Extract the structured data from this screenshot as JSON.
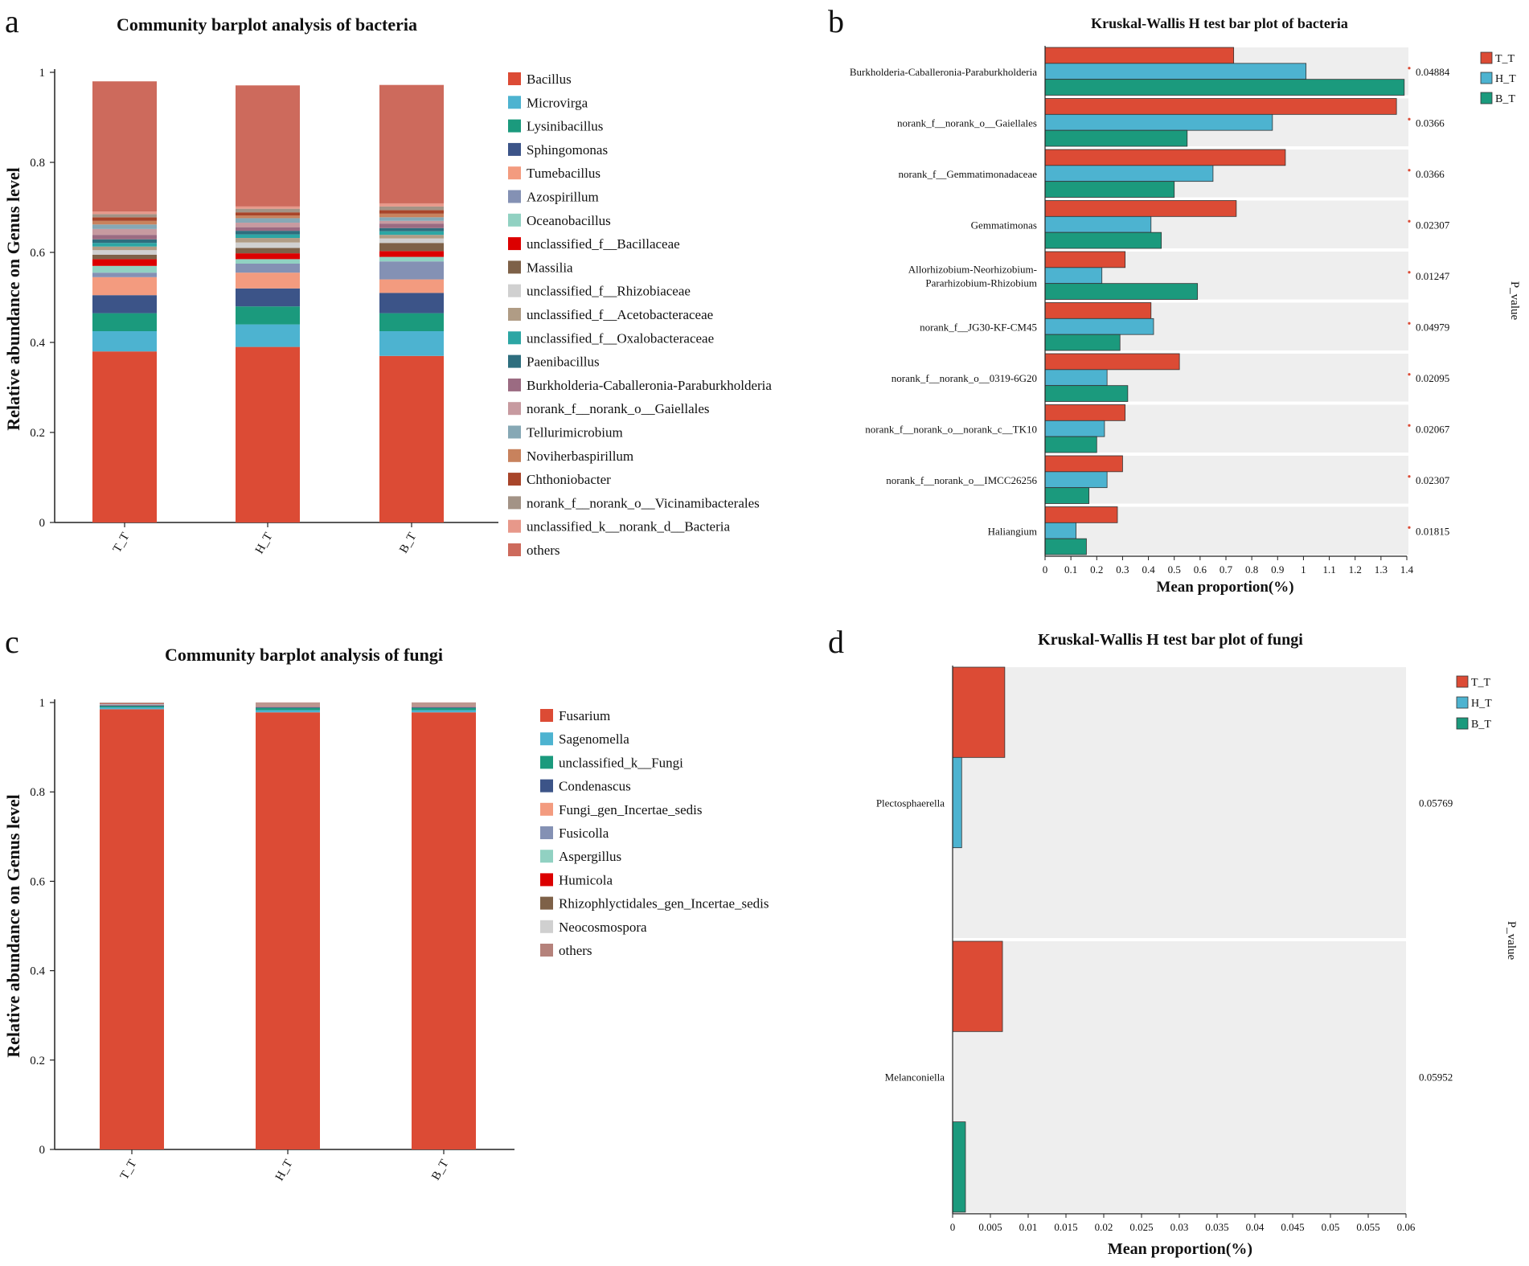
{
  "panel_letters": [
    "a",
    "b",
    "c",
    "d"
  ],
  "colors": {
    "others": "#cd6a5c",
    "ttt": "#dc4b35",
    "htt": "#4db3d0",
    "btt": "#1b9a7d",
    "band": "#eeeeee",
    "pdot": "#dc4b35"
  },
  "chart_data": [
    {
      "id": "a",
      "type": "bar",
      "stacked": true,
      "title": "Community barplot analysis of bacteria",
      "xlabel": "",
      "ylabel": "Relative abundance on Genus level",
      "ylim": [
        0,
        1
      ],
      "yticks": [
        "0",
        "0.2",
        "0.4",
        "0.6",
        "0.8",
        "1"
      ],
      "categories": [
        "T_T",
        "H_T",
        "B_T"
      ],
      "series": [
        {
          "name": "Bacillus",
          "color": "#dc4b35",
          "values": [
            0.38,
            0.39,
            0.37
          ]
        },
        {
          "name": "Microvirga",
          "color": "#4db3d0",
          "values": [
            0.045,
            0.05,
            0.055
          ]
        },
        {
          "name": "Lysinibacillus",
          "color": "#1b9a7d",
          "values": [
            0.04,
            0.04,
            0.04
          ]
        },
        {
          "name": "Sphingomonas",
          "color": "#3c5488",
          "values": [
            0.04,
            0.04,
            0.045
          ]
        },
        {
          "name": "Tumebacillus",
          "color": "#f39b7f",
          "values": [
            0.04,
            0.035,
            0.03
          ]
        },
        {
          "name": "Azospirillum",
          "color": "#8491b4",
          "values": [
            0.01,
            0.02,
            0.04
          ]
        },
        {
          "name": "Oceanobacillus",
          "color": "#91d1c2",
          "values": [
            0.015,
            0.01,
            0.01
          ]
        },
        {
          "name": "unclassified_f__Bacillaceae",
          "color": "#dc0000",
          "values": [
            0.015,
            0.013,
            0.013
          ]
        },
        {
          "name": "Massilia",
          "color": "#7e6148",
          "values": [
            0.01,
            0.012,
            0.018
          ]
        },
        {
          "name": "unclassified_f__Rhizobiaceae",
          "color": "#d0d0d0",
          "values": [
            0.01,
            0.012,
            0.01
          ]
        },
        {
          "name": "unclassified_f__Acetobacteraceae",
          "color": "#b09c85",
          "values": [
            0.008,
            0.01,
            0.008
          ]
        },
        {
          "name": "unclassified_f__Oxalobacteraceae",
          "color": "#2ca6a4",
          "values": [
            0.008,
            0.008,
            0.008
          ]
        },
        {
          "name": "Paenibacillus",
          "color": "#2e6e7e",
          "values": [
            0.008,
            0.008,
            0.007
          ]
        },
        {
          "name": "Burkholderia-Caballeronia-Paraburkholderia",
          "color": "#9b6b82",
          "values": [
            0.01,
            0.008,
            0.01
          ]
        },
        {
          "name": "norank_f__norank_o__Gaiellales",
          "color": "#c79aa0",
          "values": [
            0.013,
            0.01,
            0.006
          ]
        },
        {
          "name": "Tellurimicrobium",
          "color": "#86a8b5",
          "values": [
            0.01,
            0.01,
            0.008
          ]
        },
        {
          "name": "Noviherbaspirillum",
          "color": "#c8825d",
          "values": [
            0.008,
            0.006,
            0.008
          ]
        },
        {
          "name": "Chthoniobacter",
          "color": "#a8452a",
          "values": [
            0.008,
            0.007,
            0.008
          ]
        },
        {
          "name": "norank_f__norank_o__Vicinamibacterales",
          "color": "#a39386",
          "values": [
            0.007,
            0.008,
            0.008
          ]
        },
        {
          "name": "unclassified_k__norank_d__Bacteria",
          "color": "#e7988a",
          "values": [
            0.006,
            0.005,
            0.007
          ]
        },
        {
          "name": "others",
          "color": "#cd6a5c",
          "values": [
            0.289,
            0.269,
            0.263
          ]
        }
      ]
    },
    {
      "id": "b",
      "type": "bar",
      "orientation": "horizontal",
      "title": "Kruskal-Wallis H test bar plot of bacteria",
      "xlabel": "Mean proportion(%)",
      "ylabel": "P_value",
      "xlim": [
        0,
        1.4
      ],
      "xticks": [
        "0",
        "0.1",
        "0.2",
        "0.3",
        "0.4",
        "0.5",
        "0.6",
        "0.7",
        "0.8",
        "0.9",
        "1",
        "1.1",
        "1.2",
        "1.3",
        "1.4"
      ],
      "legend": [
        "T_T",
        "H_T",
        "B_T"
      ],
      "categories": [
        [
          "Burkholderia-Caballeronia-Paraburkholderia"
        ],
        [
          "norank_f__norank_o__Gaiellales"
        ],
        [
          "norank_f__Gemmatimonadaceae"
        ],
        [
          "Gemmatimonas"
        ],
        [
          "Allorhizobium-Neorhizobium-",
          "Pararhizobium-Rhizobium"
        ],
        [
          "norank_f__JG30-KF-CM45"
        ],
        [
          "norank_f__norank_o__0319-6G20"
        ],
        [
          "norank_f__norank_o__norank_c__TK10"
        ],
        [
          "norank_f__norank_o__IMCC26256"
        ],
        [
          "Haliangium"
        ]
      ],
      "p_values": [
        "0.04884",
        "0.0366",
        "0.0366",
        "0.02307",
        "0.01247",
        "0.04979",
        "0.02095",
        "0.02067",
        "0.02307",
        "0.01815"
      ],
      "series": [
        {
          "name": "T_T",
          "values": [
            0.73,
            1.36,
            0.93,
            0.74,
            0.31,
            0.41,
            0.52,
            0.31,
            0.3,
            0.28
          ]
        },
        {
          "name": "H_T",
          "values": [
            1.01,
            0.88,
            0.65,
            0.41,
            0.22,
            0.42,
            0.24,
            0.23,
            0.24,
            0.12
          ]
        },
        {
          "name": "B_T",
          "values": [
            1.39,
            0.55,
            0.5,
            0.45,
            0.59,
            0.29,
            0.32,
            0.2,
            0.17,
            0.16
          ]
        }
      ]
    },
    {
      "id": "c",
      "type": "bar",
      "stacked": true,
      "title": "Community barplot analysis of fungi",
      "xlabel": "",
      "ylabel": "Relative abundance on Genus level",
      "ylim": [
        0,
        1
      ],
      "yticks": [
        "0",
        "0.2",
        "0.4",
        "0.6",
        "0.8",
        "1"
      ],
      "categories": [
        "T_T",
        "H_T",
        "B_T"
      ],
      "series": [
        {
          "name": "Fusarium",
          "color": "#dc4b35",
          "values": [
            0.985,
            0.978,
            0.978
          ]
        },
        {
          "name": "Sagenomella",
          "color": "#4db3d0",
          "values": [
            0.004,
            0.005,
            0.005
          ]
        },
        {
          "name": "unclassified_k__Fungi",
          "color": "#1b9a7d",
          "values": [
            0.003,
            0.005,
            0.005
          ]
        },
        {
          "name": "Condenascus",
          "color": "#3c5488",
          "values": [
            0.002,
            0.002,
            0.002
          ]
        },
        {
          "name": "Fungi_gen_Incertae_sedis",
          "color": "#f39b7f",
          "values": [
            0.001,
            0.002,
            0.002
          ]
        },
        {
          "name": "Fusicolla",
          "color": "#8491b4",
          "values": [
            0.001,
            0.001,
            0.001
          ]
        },
        {
          "name": "Aspergillus",
          "color": "#91d1c2",
          "values": [
            0.001,
            0.001,
            0.001
          ]
        },
        {
          "name": "Humicola",
          "color": "#dc0000",
          "values": [
            0.001,
            0.001,
            0.001
          ]
        },
        {
          "name": "Rhizophlyctidales_gen_Incertae_sedis",
          "color": "#7e6148",
          "values": [
            0.001,
            0.001,
            0.001
          ]
        },
        {
          "name": "Neocosmospora",
          "color": "#d0d0d0",
          "values": [
            0.0005,
            0.001,
            0.001
          ]
        },
        {
          "name": "others",
          "color": "#b5827b",
          "values": [
            0.0005,
            0.003,
            0.003
          ]
        }
      ]
    },
    {
      "id": "d",
      "type": "bar",
      "orientation": "horizontal",
      "title": "Kruskal-Wallis H test bar plot of fungi",
      "xlabel": "Mean proportion(%)",
      "ylabel": "P_value",
      "xlim": [
        0,
        0.06
      ],
      "xticks": [
        "0",
        "0.005",
        "0.01",
        "0.015",
        "0.02",
        "0.025",
        "0.03",
        "0.035",
        "0.04",
        "0.045",
        "0.05",
        "0.055",
        "0.06"
      ],
      "legend": [
        "T_T",
        "H_T",
        "B_T"
      ],
      "categories": [
        [
          "Plectosphaerella"
        ],
        [
          "Melanconiella"
        ]
      ],
      "p_values": [
        "0.05769",
        "0.05952"
      ],
      "series": [
        {
          "name": "T_T",
          "values": [
            0.0069,
            0.0066
          ]
        },
        {
          "name": "H_T",
          "values": [
            0.0012,
            0.0
          ]
        },
        {
          "name": "B_T",
          "values": [
            0.0,
            0.0017
          ]
        }
      ]
    }
  ]
}
